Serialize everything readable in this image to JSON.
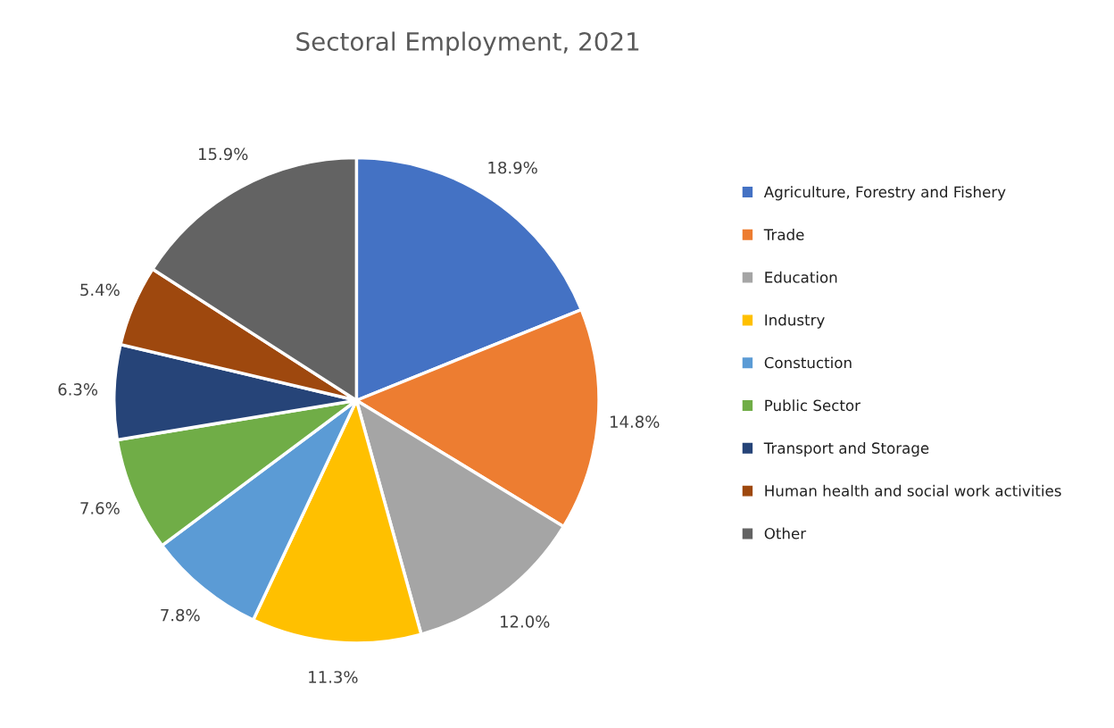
{
  "chart_data": {
    "type": "pie",
    "title": "Sectoral Employment, 2021",
    "categories": [
      "Agriculture, Forestry and Fishery",
      "Trade",
      "Education",
      "Industry",
      "Constuction",
      "Public Sector",
      "Transport and Storage",
      "Human health and social work activities",
      "Other"
    ],
    "values": [
      18.9,
      14.8,
      12.0,
      11.3,
      7.8,
      7.6,
      6.3,
      5.4,
      15.9
    ],
    "colors": [
      "#4472c4",
      "#ed7d31",
      "#a5a5a5",
      "#ffc000",
      "#5b9bd5",
      "#70ad47",
      "#264478",
      "#9e480e",
      "#636363"
    ],
    "value_labels": [
      "18.9%",
      "14.8%",
      "12.0%",
      "11.3%",
      "7.8%",
      "7.6%",
      "6.3%",
      "5.4%",
      "15.9%"
    ],
    "legend": "right"
  }
}
